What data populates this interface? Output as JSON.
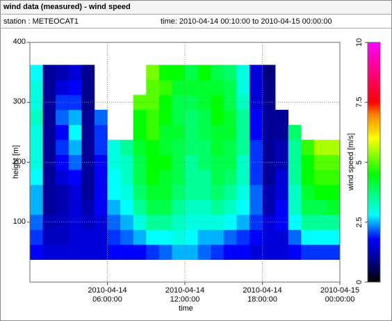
{
  "header": {
    "title": "wind data (measured) - wind speed",
    "station": "station : METEOCAT1",
    "time": "time: 2010-04-14 00:10:00 to 2010-04-15 00:00:00"
  },
  "chart_data": {
    "type": "heatmap",
    "x_label": "time",
    "y_label": "height [m]",
    "colorbar_label": "wind speed [m/s]",
    "x": [
      "2010-04-14 00:30:00",
      "2010-04-14 01:30:00",
      "2010-04-14 02:30:00",
      "2010-04-14 03:30:00",
      "2010-04-14 04:30:00",
      "2010-04-14 05:30:00",
      "2010-04-14 06:30:00",
      "2010-04-14 07:30:00",
      "2010-04-14 08:30:00",
      "2010-04-14 09:30:00",
      "2010-04-14 10:30:00",
      "2010-04-14 11:30:00",
      "2010-04-14 12:30:00",
      "2010-04-14 13:30:00",
      "2010-04-14 14:30:00",
      "2010-04-14 15:30:00",
      "2010-04-14 16:30:00",
      "2010-04-14 17:30:00",
      "2010-04-14 18:30:00",
      "2010-04-14 19:30:00",
      "2010-04-14 20:30:00",
      "2010-04-14 21:30:00",
      "2010-04-14 22:30:00",
      "2010-04-14 23:30:00"
    ],
    "y": [
      50,
      75,
      100,
      125,
      150,
      175,
      200,
      225,
      250,
      275,
      300,
      325,
      350
    ],
    "z": [
      [
        1.8,
        1.5,
        1.5,
        1.5,
        1.5,
        1.5,
        1.8,
        1.8,
        1.8,
        2.0,
        2.2,
        2.5,
        2.5,
        2.2,
        2.0,
        1.8,
        1.8,
        1.5,
        1.5,
        1.5,
        1.8,
        2.0,
        2.0,
        2.0
      ],
      [
        2.0,
        1.3,
        1.3,
        1.5,
        1.5,
        1.5,
        2.0,
        2.2,
        2.5,
        2.8,
        2.8,
        3.0,
        2.8,
        2.5,
        2.5,
        2.2,
        2.0,
        1.8,
        1.5,
        1.5,
        2.2,
        2.8,
        2.8,
        2.8
      ],
      [
        2.2,
        1.2,
        1.3,
        1.5,
        1.3,
        1.5,
        2.2,
        2.5,
        3.0,
        3.5,
        3.5,
        3.2,
        3.0,
        3.0,
        3.0,
        2.8,
        2.5,
        2.0,
        1.5,
        1.8,
        2.8,
        3.5,
        3.5,
        3.5
      ],
      [
        2.5,
        1.0,
        1.2,
        1.5,
        1.2,
        1.8,
        2.5,
        2.8,
        3.5,
        4.0,
        4.0,
        3.5,
        3.2,
        3.2,
        3.5,
        3.2,
        2.8,
        2.2,
        1.2,
        1.8,
        3.2,
        4.0,
        4.0,
        4.2
      ],
      [
        2.5,
        1.0,
        1.2,
        1.5,
        1.0,
        1.8,
        2.8,
        3.0,
        3.8,
        4.2,
        4.2,
        3.8,
        3.5,
        3.5,
        3.8,
        3.5,
        3.0,
        2.2,
        1.2,
        1.5,
        3.2,
        4.2,
        4.5,
        4.5
      ],
      [
        2.8,
        1.0,
        1.5,
        1.8,
        1.0,
        1.8,
        2.8,
        3.2,
        4.0,
        4.5,
        4.2,
        4.0,
        3.5,
        3.5,
        4.0,
        3.8,
        3.2,
        2.0,
        1.0,
        1.5,
        3.5,
        4.5,
        4.8,
        4.8
      ],
      [
        3.0,
        1.0,
        1.8,
        2.2,
        1.0,
        1.8,
        3.0,
        3.2,
        4.0,
        4.5,
        4.5,
        4.0,
        3.5,
        3.8,
        4.0,
        4.0,
        3.2,
        2.0,
        1.0,
        1.2,
        3.5,
        4.5,
        5.0,
        5.0
      ],
      [
        3.0,
        1.0,
        2.0,
        2.5,
        1.0,
        2.0,
        3.0,
        3.5,
        4.2,
        4.5,
        4.2,
        4.0,
        3.8,
        3.8,
        4.2,
        4.0,
        3.5,
        2.0,
        1.0,
        1.2,
        3.5,
        4.8,
        5.5,
        5.5
      ],
      [
        3.0,
        1.0,
        1.8,
        2.8,
        1.0,
        2.0,
        null,
        null,
        4.5,
        4.8,
        4.2,
        4.2,
        3.8,
        4.0,
        4.2,
        4.2,
        3.5,
        1.8,
        1.0,
        1.0,
        3.8,
        null,
        null,
        null
      ],
      [
        3.2,
        1.0,
        2.2,
        2.5,
        1.0,
        2.2,
        null,
        null,
        4.5,
        4.8,
        4.5,
        4.0,
        3.8,
        4.0,
        4.5,
        4.2,
        3.5,
        1.8,
        1.0,
        1.0,
        null,
        null,
        null,
        null
      ],
      [
        3.0,
        1.0,
        2.0,
        2.0,
        0.9,
        null,
        null,
        null,
        5.0,
        5.0,
        4.5,
        4.0,
        4.0,
        4.2,
        4.5,
        4.0,
        3.2,
        1.5,
        0.9,
        null,
        null,
        null,
        null,
        null
      ],
      [
        3.0,
        1.0,
        1.5,
        1.8,
        0.9,
        null,
        null,
        null,
        null,
        5.0,
        4.8,
        4.2,
        4.2,
        4.2,
        4.2,
        4.0,
        3.0,
        1.5,
        0.9,
        null,
        null,
        null,
        null,
        null
      ],
      [
        2.8,
        1.0,
        1.2,
        1.5,
        0.9,
        null,
        null,
        null,
        null,
        5.2,
        4.5,
        4.5,
        4.0,
        4.5,
        4.0,
        3.8,
        3.0,
        1.5,
        0.8,
        null,
        null,
        null,
        null,
        null
      ]
    ],
    "xlim": [
      "2010-04-14 00:00:00",
      "2010-04-15 00:00:00"
    ],
    "xticks": [
      "2010-04-14 06:00:00",
      "2010-04-14 12:00:00",
      "2010-04-14 18:00:00",
      "2010-04-15 00:00:00"
    ],
    "ylim": [
      0,
      400
    ],
    "yticks": [
      100,
      200,
      300,
      400
    ],
    "clim": [
      0,
      10
    ],
    "cticks": [
      0,
      2.5,
      5,
      7.5,
      10
    ],
    "colorscale": [
      [
        0,
        "#000000"
      ],
      [
        0.8,
        "#000080"
      ],
      [
        1.8,
        "#0000ff"
      ],
      [
        2.8,
        "#00ffff"
      ],
      [
        4.5,
        "#00ff00"
      ],
      [
        6,
        "#ffff00"
      ],
      [
        7,
        "#ff8000"
      ],
      [
        7.5,
        "#ff0000"
      ],
      [
        10,
        "#ff00ff"
      ]
    ],
    "grid": true
  }
}
